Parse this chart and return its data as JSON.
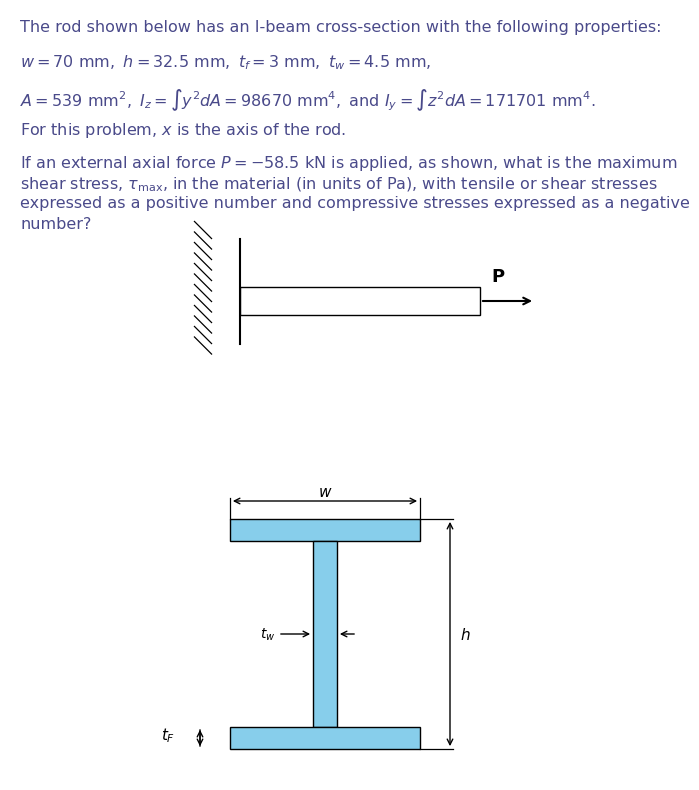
{
  "text_color": "#4a4a8a",
  "background_color": "#ffffff",
  "ibeam_fill_color": "#87ceeb",
  "ibeam_edge_color": "#000000",
  "line1": "The rod shown below has an I-beam cross-section with the following properties:",
  "line2": "$w = 70\\ \\mathrm{mm},\\ h = 32.5\\ \\mathrm{mm},\\ t_f = 3\\ \\mathrm{mm},\\ t_w = 4.5\\ \\mathrm{mm},$",
  "line3": "$A = 539\\ \\mathrm{mm}^2,\\ I_z = \\int y^2 dA = 98670\\ \\mathrm{mm}^4,\\ \\mathrm{and}\\ I_y = \\int z^2 dA = 171701\\ \\mathrm{mm}^4.$",
  "line4": "For this problem, $x$ is the axis of the rod.",
  "line5": "If an external axial force $P = -58.5\\ \\mathrm{kN}$ is applied, as shown, what is the maximum",
  "line6": "shear stress, $\\tau_{\\max}$, in the material (in units of Pa), with tensile or shear stresses",
  "line7": "expressed as a positive number and compressive stresses expressed as a negative",
  "line8": "number?"
}
